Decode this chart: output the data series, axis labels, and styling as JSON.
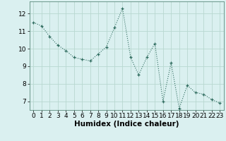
{
  "x": [
    0,
    1,
    2,
    3,
    4,
    5,
    6,
    7,
    8,
    9,
    10,
    11,
    12,
    13,
    14,
    15,
    16,
    17,
    18,
    19,
    20,
    21,
    22,
    23
  ],
  "y": [
    11.5,
    11.3,
    10.7,
    10.2,
    9.9,
    9.5,
    9.4,
    9.3,
    9.7,
    10.1,
    11.2,
    12.3,
    9.5,
    8.5,
    9.5,
    10.3,
    7.0,
    9.2,
    6.6,
    7.9,
    7.5,
    7.4,
    7.1,
    6.9
  ],
  "title": "",
  "xlabel": "Humidex (Indice chaleur)",
  "ylabel": "",
  "xlim": [
    -0.5,
    23.5
  ],
  "ylim": [
    6.5,
    12.7
  ],
  "yticks": [
    7,
    8,
    9,
    10,
    11,
    12
  ],
  "xticks": [
    0,
    1,
    2,
    3,
    4,
    5,
    6,
    7,
    8,
    9,
    10,
    11,
    12,
    13,
    14,
    15,
    16,
    17,
    18,
    19,
    20,
    21,
    22,
    23
  ],
  "line_color": "#2e6b5e",
  "marker": "+",
  "bg_color": "#daf0f0",
  "grid_color": "#b8d8d0",
  "xlabel_fontsize": 7.5,
  "tick_fontsize": 6.5
}
